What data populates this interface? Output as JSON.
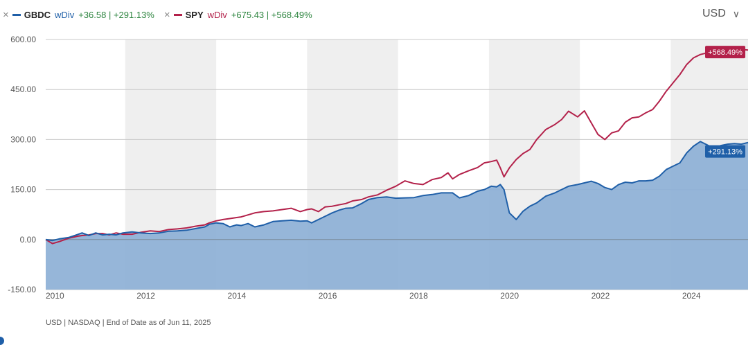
{
  "legend": [
    {
      "close": "×",
      "ticker": "GBDC",
      "wdiv": "wDiv",
      "change": "+36.58 | +291.13%",
      "color": "#1f5fa8"
    },
    {
      "close": "×",
      "ticker": "SPY",
      "wdiv": "wDiv",
      "change": "+675.43 | +568.49%",
      "color": "#b3214a"
    }
  ],
  "currency": {
    "label": "USD",
    "chevron": "∨"
  },
  "footer": "USD | NASDAQ | End of Date as of Jun 11, 2025",
  "chart_data": {
    "type": "area",
    "title": "",
    "xlabel": "",
    "ylabel": "",
    "xlim": [
      2010.0,
      2025.45
    ],
    "ylim": [
      -150,
      600
    ],
    "yticks": [
      "600.00",
      "450.00",
      "300.00",
      "150.00",
      "0.00",
      "-150.00"
    ],
    "ytick_values": [
      600,
      450,
      300,
      150,
      0,
      -150
    ],
    "xticks": [
      "2010",
      "2012",
      "2014",
      "2016",
      "2018",
      "2020",
      "2022",
      "2024"
    ],
    "xtick_values": [
      2010,
      2012,
      2014,
      2016,
      2018,
      2020,
      2022,
      2024
    ],
    "shaded_bands": [
      [
        2011.75,
        2013.75
      ],
      [
        2015.75,
        2017.75
      ],
      [
        2019.75,
        2021.75
      ],
      [
        2023.75,
        2025.45
      ]
    ],
    "grid": true,
    "series": [
      {
        "name": "GBDC",
        "color": "#1f5fa8",
        "fill": "#8db0d6",
        "end_label": "+291.13%",
        "x": [
          2010.0,
          2010.15,
          2010.3,
          2010.5,
          2010.7,
          2010.8,
          2010.95,
          2011.1,
          2011.25,
          2011.4,
          2011.55,
          2011.7,
          2011.9,
          2012.1,
          2012.3,
          2012.5,
          2012.7,
          2012.9,
          2013.1,
          2013.3,
          2013.5,
          2013.6,
          2013.75,
          2013.9,
          2014.05,
          2014.2,
          2014.3,
          2014.45,
          2014.6,
          2014.8,
          2015.0,
          2015.2,
          2015.4,
          2015.6,
          2015.75,
          2015.85,
          2016.0,
          2016.15,
          2016.3,
          2016.45,
          2016.6,
          2016.75,
          2016.95,
          2017.1,
          2017.3,
          2017.5,
          2017.7,
          2017.9,
          2018.1,
          2018.3,
          2018.5,
          2018.7,
          2018.85,
          2018.95,
          2019.1,
          2019.3,
          2019.5,
          2019.65,
          2019.8,
          2019.92,
          2020.0,
          2020.08,
          2020.2,
          2020.35,
          2020.5,
          2020.65,
          2020.8,
          2021.0,
          2021.2,
          2021.35,
          2021.5,
          2021.7,
          2021.85,
          2022.0,
          2022.15,
          2022.3,
          2022.45,
          2022.6,
          2022.75,
          2022.9,
          2023.05,
          2023.2,
          2023.35,
          2023.5,
          2023.65,
          2023.8,
          2023.95,
          2024.1,
          2024.25,
          2024.4,
          2024.55,
          2024.7,
          2024.85,
          2025.0,
          2025.15,
          2025.3,
          2025.45
        ],
        "y": [
          0,
          -3,
          2,
          6,
          15,
          20,
          12,
          20,
          14,
          16,
          14,
          20,
          23,
          20,
          18,
          20,
          25,
          26,
          28,
          33,
          38,
          46,
          50,
          48,
          38,
          44,
          42,
          48,
          38,
          44,
          54,
          56,
          58,
          55,
          56,
          50,
          60,
          70,
          80,
          88,
          94,
          95,
          108,
          120,
          126,
          128,
          124,
          125,
          126,
          132,
          135,
          140,
          140,
          140,
          125,
          132,
          145,
          150,
          160,
          158,
          165,
          150,
          80,
          60,
          85,
          100,
          110,
          130,
          140,
          150,
          160,
          165,
          170,
          175,
          168,
          156,
          150,
          165,
          172,
          170,
          176,
          176,
          178,
          190,
          210,
          220,
          230,
          260,
          280,
          294,
          284,
          272,
          282,
          286,
          288,
          286,
          291.13
        ]
      },
      {
        "name": "SPY",
        "color": "#b3214a",
        "end_label": "+568.49%",
        "x": [
          2010.0,
          2010.15,
          2010.3,
          2010.5,
          2010.7,
          2010.8,
          2010.95,
          2011.1,
          2011.25,
          2011.4,
          2011.55,
          2011.7,
          2011.9,
          2012.1,
          2012.3,
          2012.5,
          2012.7,
          2012.9,
          2013.1,
          2013.3,
          2013.5,
          2013.6,
          2013.75,
          2013.9,
          2014.05,
          2014.2,
          2014.3,
          2014.45,
          2014.6,
          2014.8,
          2015.0,
          2015.2,
          2015.4,
          2015.6,
          2015.75,
          2015.85,
          2016.0,
          2016.15,
          2016.3,
          2016.45,
          2016.6,
          2016.75,
          2016.95,
          2017.1,
          2017.3,
          2017.5,
          2017.7,
          2017.9,
          2018.1,
          2018.3,
          2018.5,
          2018.7,
          2018.85,
          2018.95,
          2019.1,
          2019.3,
          2019.5,
          2019.65,
          2019.8,
          2019.92,
          2020.0,
          2020.08,
          2020.2,
          2020.35,
          2020.5,
          2020.65,
          2020.8,
          2021.0,
          2021.2,
          2021.35,
          2021.5,
          2021.7,
          2021.85,
          2022.0,
          2022.15,
          2022.3,
          2022.45,
          2022.6,
          2022.75,
          2022.9,
          2023.05,
          2023.2,
          2023.35,
          2023.5,
          2023.65,
          2023.8,
          2023.95,
          2024.1,
          2024.25,
          2024.4,
          2024.55,
          2024.7,
          2024.85,
          2025.0,
          2025.15,
          2025.3,
          2025.45
        ],
        "y": [
          0,
          -12,
          -6,
          4,
          10,
          12,
          14,
          18,
          18,
          14,
          20,
          16,
          16,
          22,
          26,
          24,
          30,
          32,
          35,
          40,
          44,
          50,
          56,
          60,
          63,
          66,
          68,
          74,
          80,
          84,
          86,
          90,
          94,
          84,
          90,
          92,
          84,
          98,
          100,
          104,
          108,
          116,
          120,
          128,
          134,
          148,
          160,
          176,
          168,
          165,
          180,
          186,
          200,
          182,
          195,
          206,
          216,
          230,
          234,
          238,
          215,
          188,
          215,
          240,
          258,
          270,
          300,
          330,
          345,
          360,
          385,
          368,
          386,
          350,
          315,
          300,
          320,
          326,
          352,
          365,
          368,
          380,
          390,
          415,
          445,
          470,
          495,
          525,
          545,
          555,
          560,
          555,
          552,
          548,
          558,
          570,
          568.49
        ]
      }
    ]
  }
}
